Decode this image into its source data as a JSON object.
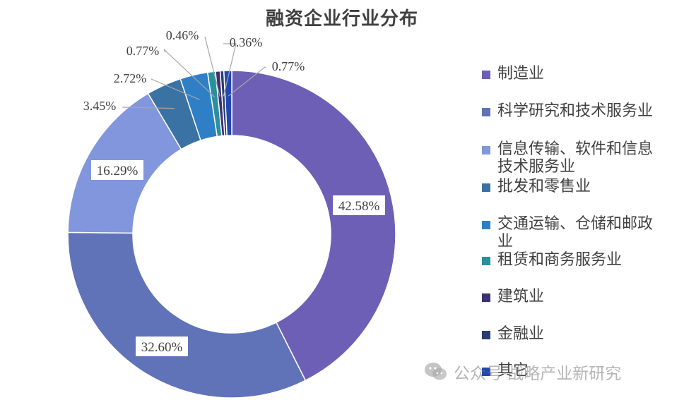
{
  "chart_data": {
    "type": "pie",
    "title": "融资企业行业分布",
    "categories": [
      "制造业",
      "科学研究和技术服务业",
      "信息传输、软件和信息技术服务业",
      "批发和零售业",
      "交通运输、仓储和邮政业",
      "租赁和商务服务业",
      "建筑业",
      "金融业",
      "其它"
    ],
    "values": [
      42.58,
      32.6,
      16.29,
      3.45,
      2.72,
      0.77,
      0.46,
      0.36,
      0.77
    ],
    "labels": [
      "42.58%",
      "32.60%",
      "16.29%",
      "3.45%",
      "2.72%",
      "0.77%",
      "0.46%",
      "0.36%",
      "0.77%"
    ],
    "colors": [
      "#6e5fb6",
      "#6073b8",
      "#8196dc",
      "#3a73a3",
      "#2f7fc6",
      "#29909d",
      "#3d3175",
      "#2a3d71",
      "#2248b0"
    ],
    "donut": true,
    "legend_position": "right"
  },
  "watermark": {
    "icon": "wechat-icon",
    "text": "公众号·战略产业新研究"
  }
}
